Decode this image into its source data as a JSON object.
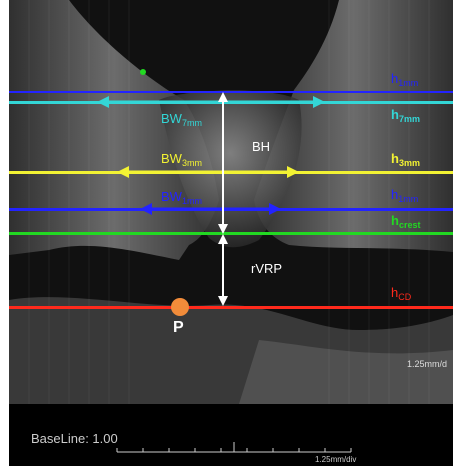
{
  "colors": {
    "blue": "#2323ff",
    "cyan": "#33d6d6",
    "yellow": "#f2f233",
    "green": "#22d922",
    "red": "#ff2a1c",
    "orange": "#f28c3a",
    "white": "#ffffff"
  },
  "labels": {
    "bw7": {
      "main": "BW",
      "sub": "7mm"
    },
    "bw3": {
      "main": "BW",
      "sub": "3mm"
    },
    "bw1": {
      "main": "BW",
      "sub": "1mm"
    },
    "bh": "BH",
    "rvrp": "rVRP",
    "h1": {
      "main": "h",
      "sub": "1mm"
    },
    "h7": {
      "main": "h",
      "sub": "7mm"
    },
    "h3": {
      "main": "h",
      "sub": "3mm"
    },
    "h_1": {
      "main": "h",
      "sub": "1mm"
    },
    "hcrest": {
      "main": "h",
      "sub": "crest"
    },
    "hcd": {
      "main": "h",
      "sub": "CD"
    },
    "point_p": "P"
  },
  "scale_right": "1.25mm/d",
  "baseline": "BaseLine: 1.00",
  "scale_bottom": "1.25mm/div"
}
